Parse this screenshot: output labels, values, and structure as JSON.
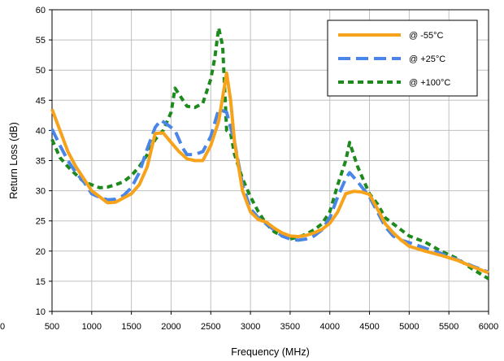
{
  "chart_data": {
    "type": "line",
    "xlabel": "Frequency (MHz)",
    "ylabel": "Return Loss (dB)",
    "xlim": [
      500,
      6000
    ],
    "ylim": [
      10,
      60
    ],
    "x_ticks": [
      "500",
      "1000",
      "1500",
      "2000",
      "2500",
      "3000",
      "3500",
      "4000",
      "4500",
      "5000",
      "5500",
      "6000"
    ],
    "y_ticks": [
      "10",
      "15",
      "20",
      "25",
      "30",
      "35",
      "40",
      "45",
      "50",
      "55",
      "60"
    ],
    "stray_tick_label": "0",
    "grid": true,
    "legend_position": "top-right",
    "series": [
      {
        "name": "@ -55°C",
        "color": "#f7a21b",
        "style": "solid",
        "points": [
          [
            500,
            43.5
          ],
          [
            600,
            40
          ],
          [
            700,
            36.5
          ],
          [
            800,
            34
          ],
          [
            900,
            32
          ],
          [
            1000,
            30
          ],
          [
            1100,
            29
          ],
          [
            1200,
            28
          ],
          [
            1300,
            28.1
          ],
          [
            1400,
            28.8
          ],
          [
            1500,
            29.5
          ],
          [
            1600,
            31
          ],
          [
            1700,
            34
          ],
          [
            1800,
            39.5
          ],
          [
            1900,
            39.6
          ],
          [
            2000,
            38
          ],
          [
            2100,
            36.5
          ],
          [
            2200,
            35.3
          ],
          [
            2300,
            35
          ],
          [
            2400,
            35
          ],
          [
            2500,
            37.5
          ],
          [
            2600,
            41.5
          ],
          [
            2700,
            49.5
          ],
          [
            2750,
            45
          ],
          [
            2800,
            38
          ],
          [
            2900,
            30
          ],
          [
            3000,
            26.5
          ],
          [
            3100,
            25.2
          ],
          [
            3200,
            24.8
          ],
          [
            3300,
            23.8
          ],
          [
            3400,
            23
          ],
          [
            3500,
            22.5
          ],
          [
            3600,
            22.4
          ],
          [
            3700,
            22.6
          ],
          [
            3800,
            23
          ],
          [
            3900,
            23.6
          ],
          [
            4000,
            24.6
          ],
          [
            4100,
            26.5
          ],
          [
            4200,
            29.5
          ],
          [
            4300,
            29.9
          ],
          [
            4400,
            29.8
          ],
          [
            4500,
            29.4
          ],
          [
            4600,
            27
          ],
          [
            4700,
            24.5
          ],
          [
            4800,
            23
          ],
          [
            4900,
            21.8
          ],
          [
            5000,
            20.8
          ],
          [
            5200,
            20
          ],
          [
            5400,
            19.3
          ],
          [
            5600,
            18.5
          ],
          [
            5800,
            17.4
          ],
          [
            6000,
            16.4
          ]
        ]
      },
      {
        "name": "@ +25°C",
        "color": "#4a86e8",
        "style": "long-dash",
        "points": [
          [
            500,
            40.2
          ],
          [
            600,
            37.5
          ],
          [
            700,
            35
          ],
          [
            800,
            33
          ],
          [
            900,
            31.5
          ],
          [
            1000,
            29.5
          ],
          [
            1100,
            28.9
          ],
          [
            1200,
            28.5
          ],
          [
            1300,
            28.6
          ],
          [
            1400,
            29.2
          ],
          [
            1500,
            30.5
          ],
          [
            1600,
            33
          ],
          [
            1700,
            37
          ],
          [
            1800,
            40.5
          ],
          [
            1870,
            41.7
          ],
          [
            1950,
            41
          ],
          [
            2050,
            40
          ],
          [
            2150,
            37
          ],
          [
            2200,
            36
          ],
          [
            2300,
            36
          ],
          [
            2400,
            36.5
          ],
          [
            2500,
            39
          ],
          [
            2600,
            43.5
          ],
          [
            2700,
            43
          ],
          [
            2800,
            38
          ],
          [
            2900,
            31
          ],
          [
            3000,
            27
          ],
          [
            3100,
            25.5
          ],
          [
            3200,
            24.5
          ],
          [
            3300,
            23.5
          ],
          [
            3400,
            22.5
          ],
          [
            3500,
            22
          ],
          [
            3600,
            21.8
          ],
          [
            3700,
            22
          ],
          [
            3800,
            22.5
          ],
          [
            3900,
            23.5
          ],
          [
            4000,
            25.5
          ],
          [
            4100,
            29
          ],
          [
            4200,
            32
          ],
          [
            4250,
            33
          ],
          [
            4350,
            31.5
          ],
          [
            4500,
            29
          ],
          [
            4600,
            26.5
          ],
          [
            4700,
            24
          ],
          [
            4800,
            22.5
          ],
          [
            4900,
            21.8
          ],
          [
            5000,
            21.4
          ],
          [
            5200,
            20.5
          ],
          [
            5400,
            19.6
          ],
          [
            5600,
            18.6
          ],
          [
            5800,
            17.5
          ],
          [
            6000,
            16.5
          ]
        ]
      },
      {
        "name": "@ +100°C",
        "color": "#1e8a1e",
        "style": "short-dash",
        "points": [
          [
            500,
            38.5
          ],
          [
            600,
            35.5
          ],
          [
            700,
            34
          ],
          [
            800,
            32.7
          ],
          [
            900,
            31.5
          ],
          [
            1000,
            31
          ],
          [
            1100,
            30.5
          ],
          [
            1200,
            30.6
          ],
          [
            1300,
            31
          ],
          [
            1400,
            31.5
          ],
          [
            1500,
            32.5
          ],
          [
            1600,
            34
          ],
          [
            1700,
            36
          ],
          [
            1800,
            38.5
          ],
          [
            1900,
            40
          ],
          [
            2000,
            43
          ],
          [
            2050,
            47
          ],
          [
            2100,
            46
          ],
          [
            2200,
            44
          ],
          [
            2300,
            43.8
          ],
          [
            2400,
            44.5
          ],
          [
            2500,
            48.5
          ],
          [
            2550,
            52
          ],
          [
            2600,
            57
          ],
          [
            2650,
            54
          ],
          [
            2700,
            40
          ],
          [
            2750,
            39.5
          ],
          [
            2800,
            36
          ],
          [
            2900,
            32
          ],
          [
            3000,
            29
          ],
          [
            3100,
            26.5
          ],
          [
            3200,
            24.5
          ],
          [
            3300,
            23.2
          ],
          [
            3400,
            22.5
          ],
          [
            3500,
            22
          ],
          [
            3600,
            22.3
          ],
          [
            3700,
            22.8
          ],
          [
            3800,
            23.5
          ],
          [
            3900,
            24.5
          ],
          [
            4000,
            26.5
          ],
          [
            4100,
            31
          ],
          [
            4200,
            35
          ],
          [
            4250,
            38
          ],
          [
            4350,
            34
          ],
          [
            4500,
            29.5
          ],
          [
            4600,
            27.8
          ],
          [
            4700,
            25.5
          ],
          [
            4800,
            24.5
          ],
          [
            4900,
            23.5
          ],
          [
            5000,
            22.5
          ],
          [
            5200,
            21.5
          ],
          [
            5400,
            20
          ],
          [
            5600,
            18.8
          ],
          [
            5800,
            17
          ],
          [
            6000,
            15.4
          ]
        ]
      }
    ]
  }
}
